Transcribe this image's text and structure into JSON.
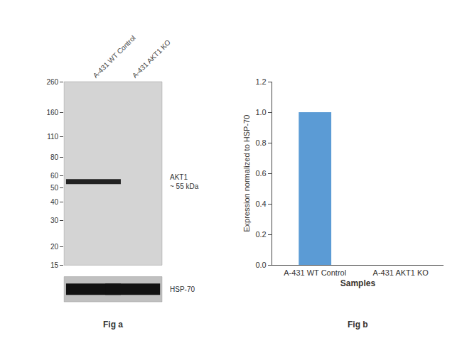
{
  "chart_data": [
    {
      "type": "blot",
      "title": "Fig a",
      "categories": [
        "A-431 WT Control",
        "A-431 AKT1 KO"
      ],
      "log": "y",
      "ylim": [
        15,
        260
      ],
      "yticks": [
        260,
        160,
        110,
        80,
        60,
        50,
        40,
        30,
        20,
        15
      ],
      "series": [
        {
          "name": "AKT1\n~ 55 kDa",
          "values": [
            55,
            null
          ]
        }
      ],
      "annotations": [
        "HSP-70"
      ],
      "grid": false
    },
    {
      "type": "bar",
      "title": "Fig b",
      "categories": [
        "A-431 WT Control",
        "A-431 AKT1 KO"
      ],
      "values": [
        1.0,
        0.0
      ],
      "color": "#5b9bd5",
      "xlabel": "Samples",
      "ylabel": "Expression normalized to HSP-70",
      "ylim": [
        0,
        1.2
      ],
      "yticks": [
        {
          "value": 0,
          "label": "0.0"
        },
        0.2,
        0.4,
        0.6,
        0.8,
        {
          "value": 1.0,
          "label": "1.0"
        },
        1.2
      ],
      "grid": false
    }
  ]
}
